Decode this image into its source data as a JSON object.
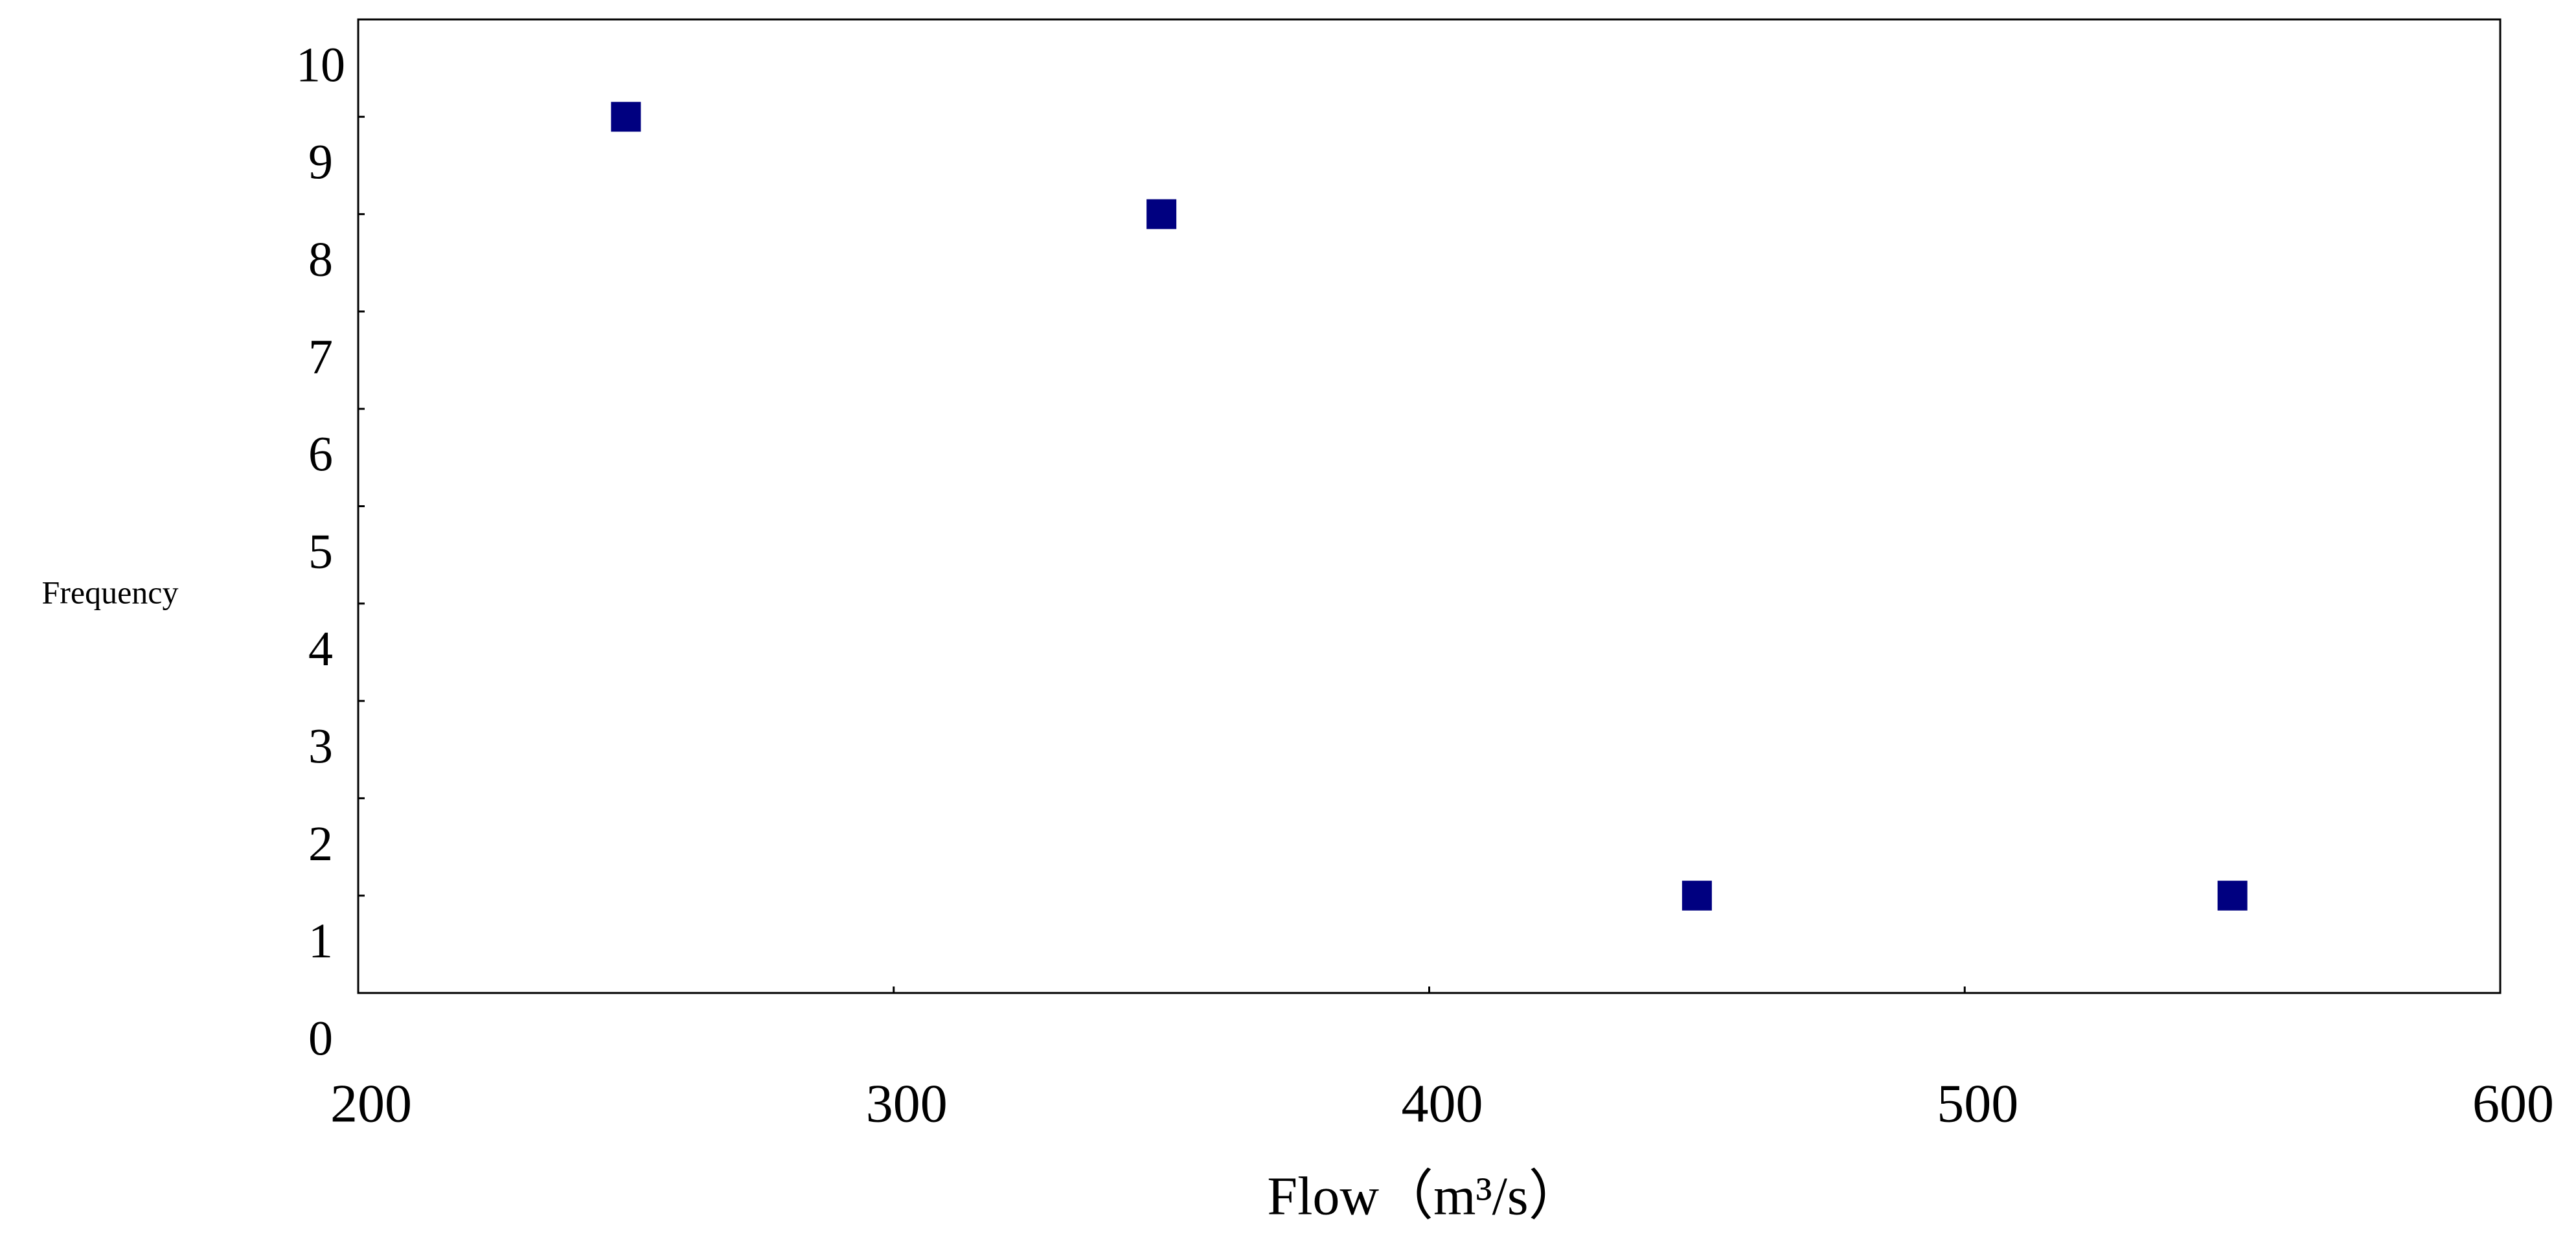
{
  "chart_data": {
    "type": "scatter",
    "x_label": "Flow（m³/s）",
    "y_label": "Frequency",
    "series": [
      {
        "name": "Frequency",
        "color": "#000080",
        "x": [
          250,
          350,
          450,
          550
        ],
        "values": [
          9,
          8,
          1,
          1
        ]
      }
    ],
    "xlim": [
      200,
      600
    ],
    "xticks": [
      200,
      300,
      400,
      500,
      600
    ],
    "ylim": [
      0,
      10
    ],
    "yticks": [
      0,
      1,
      2,
      3,
      4,
      5,
      6,
      7,
      8,
      9,
      10
    ]
  }
}
